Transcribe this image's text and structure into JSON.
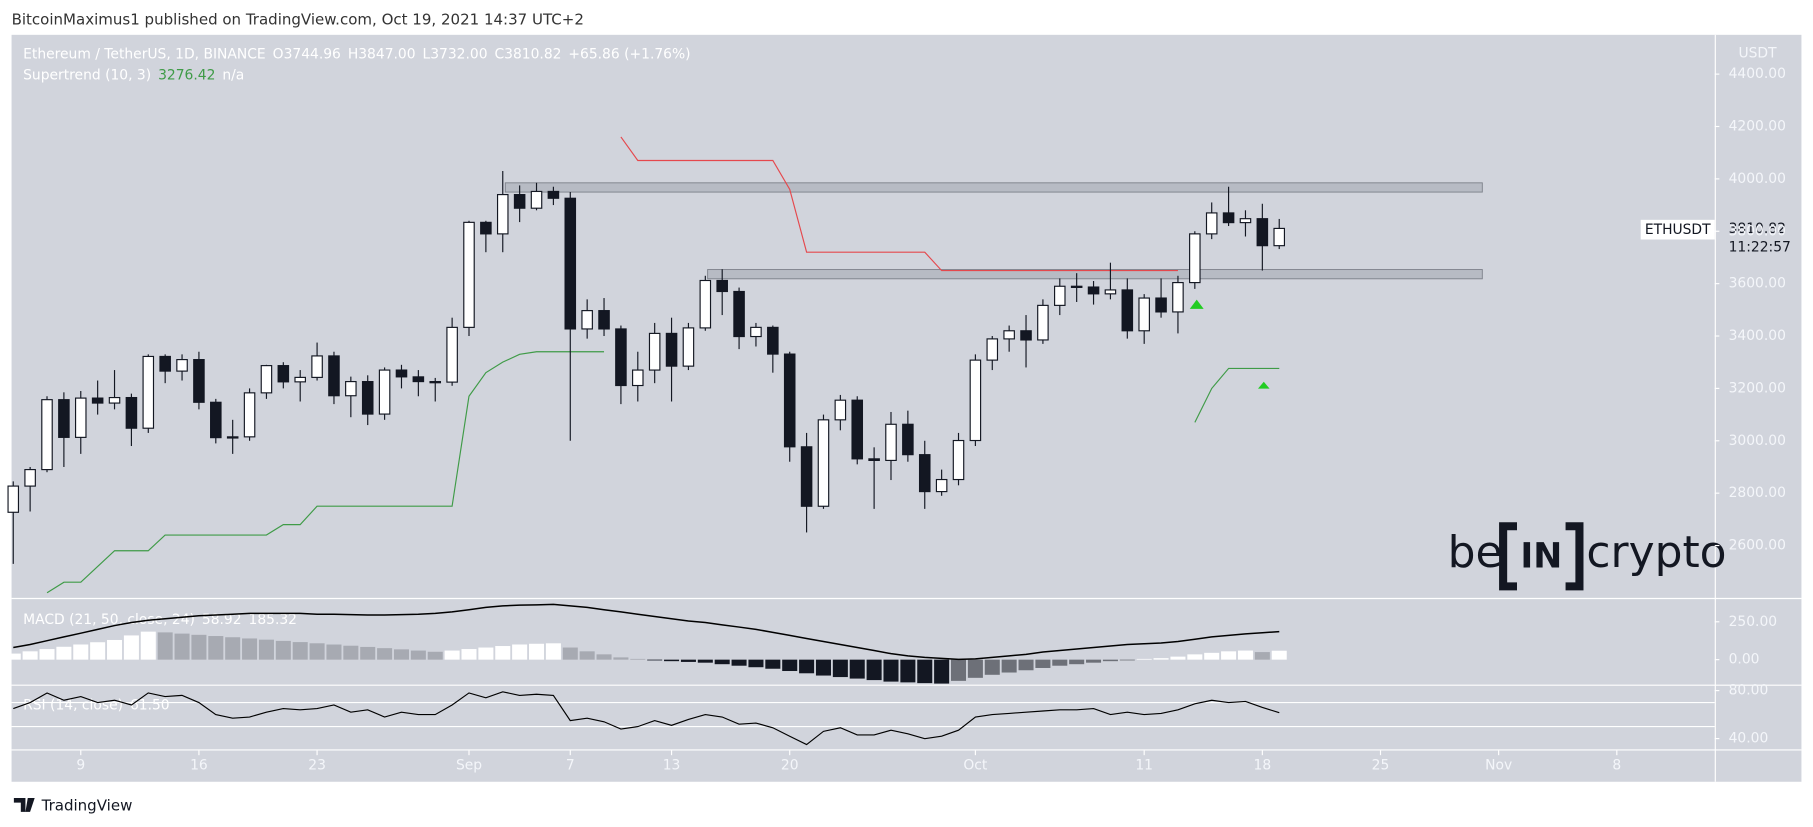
{
  "header": {
    "publisher": "BitcoinMaximus1 published on TradingView.com, Oct 19, 2021 14:37 UTC+2"
  },
  "chart_data": [
    {
      "type": "candlestick",
      "title": "Ethereum / TetherUS, 1D, BINANCE",
      "ohlc_legend": [
        {
          "key": "O",
          "label": "3744.96"
        },
        {
          "key": "H",
          "label": "3847.00"
        },
        {
          "key": "L",
          "label": "3732.00"
        },
        {
          "key": "C",
          "label": "3810.82"
        }
      ],
      "change_label": "+65.86 (+1.76%)",
      "currency": "USDT",
      "symbol": "ETHUSDT",
      "countdown": "11:22:57",
      "open": [
        2727,
        2827,
        2890,
        3157,
        3013,
        3163,
        3144,
        3165,
        3048,
        3322,
        3266,
        3310,
        3147,
        3012,
        3015,
        3183,
        3287,
        3225,
        3242,
        3324,
        3172,
        3226,
        3102,
        3270,
        3244,
        3226,
        3224,
        3433,
        3834,
        3790,
        3940,
        3888,
        3952,
        3926,
        3427,
        3497,
        3427,
        3211,
        3270,
        3410,
        3285,
        3431,
        3612,
        3570,
        3398,
        3433,
        3331,
        2977,
        2750,
        3080,
        3155,
        2931,
        2925,
        3063,
        2947,
        2806,
        2852,
        3001,
        3308,
        3389,
        3420,
        3385,
        3517,
        3590,
        3587,
        3561,
        3576,
        3420,
        3545,
        3492,
        3604,
        3790,
        3870,
        3833,
        3848,
        3744.96
      ],
      "high": [
        2845,
        2900,
        3170,
        3185,
        3190,
        3230,
        3270,
        3180,
        3330,
        3330,
        3330,
        3340,
        3160,
        3080,
        3200,
        3290,
        3300,
        3270,
        3375,
        3340,
        3245,
        3250,
        3280,
        3290,
        3270,
        3240,
        3470,
        3840,
        3840,
        4030,
        3975,
        3985,
        3970,
        3950,
        3540,
        3545,
        3440,
        3340,
        3450,
        3470,
        3450,
        3630,
        3655,
        3585,
        3450,
        3440,
        3340,
        3030,
        3100,
        3175,
        3170,
        2975,
        3110,
        3115,
        3000,
        2890,
        3030,
        3330,
        3400,
        3440,
        3480,
        3540,
        3620,
        3640,
        3610,
        3680,
        3620,
        3560,
        3620,
        3630,
        3800,
        3910,
        3970,
        3880,
        3905,
        3847
      ],
      "low": [
        2530,
        2730,
        2880,
        2900,
        2950,
        3100,
        3120,
        2980,
        3030,
        3220,
        3230,
        3120,
        2990,
        2950,
        3000,
        3160,
        3200,
        3150,
        3230,
        3140,
        3090,
        3060,
        3080,
        3200,
        3170,
        3150,
        3210,
        3400,
        3720,
        3720,
        3835,
        3880,
        3900,
        3000,
        3390,
        3400,
        3140,
        3150,
        3220,
        3150,
        3270,
        3420,
        3480,
        3350,
        3360,
        3260,
        2920,
        2650,
        2740,
        3040,
        2910,
        2740,
        2850,
        2920,
        2740,
        2790,
        2830,
        2980,
        3270,
        3340,
        3280,
        3370,
        3480,
        3530,
        3520,
        3540,
        3390,
        3370,
        3470,
        3410,
        3580,
        3770,
        3820,
        3780,
        3650,
        3732
      ],
      "close": [
        2827,
        2890,
        3157,
        3013,
        3163,
        3144,
        3165,
        3048,
        3322,
        3266,
        3310,
        3147,
        3012,
        3015,
        3183,
        3287,
        3225,
        3242,
        3324,
        3172,
        3226,
        3102,
        3270,
        3244,
        3226,
        3224,
        3433,
        3834,
        3790,
        3940,
        3888,
        3952,
        3926,
        3427,
        3497,
        3427,
        3211,
        3270,
        3410,
        3285,
        3431,
        3612,
        3570,
        3398,
        3433,
        3331,
        2977,
        2750,
        3080,
        3155,
        2931,
        2925,
        3063,
        2947,
        2806,
        2852,
        3001,
        3308,
        3389,
        3420,
        3385,
        3517,
        3590,
        3587,
        3561,
        3576,
        3420,
        3545,
        3492,
        3604,
        3790,
        3870,
        3833,
        3848,
        3744.96,
        3810.82
      ],
      "up_color": "#ffffff",
      "down_color": "#131722",
      "supertrend": {
        "name": "Supertrend (10, 3)",
        "up_color": "#3f9b47",
        "down_color": "#e5484d",
        "status": "n/a",
        "up_values": [
          null,
          null,
          2420,
          2460,
          2460,
          2520,
          2580,
          2580,
          2580,
          2640,
          2640,
          2640,
          2640,
          2640,
          2640,
          2640,
          2680,
          2680,
          2750,
          2750,
          2750,
          2750,
          2750,
          2750,
          2750,
          2750,
          2750,
          3170,
          3260,
          3300,
          3330,
          3340,
          3340,
          3340,
          3340,
          3340,
          null,
          null,
          null,
          null,
          null,
          null,
          null,
          null,
          null,
          null,
          null,
          null,
          null,
          null,
          null,
          null,
          null,
          null,
          null,
          null,
          null,
          null,
          null,
          null,
          null,
          null,
          null,
          null,
          null,
          null,
          null,
          null,
          null,
          null,
          3070,
          3200,
          3276.42,
          3276.42,
          3276.42,
          3276.42
        ],
        "down_values": [
          null,
          null,
          null,
          null,
          null,
          null,
          null,
          null,
          null,
          null,
          null,
          null,
          null,
          null,
          null,
          null,
          null,
          null,
          null,
          null,
          null,
          null,
          null,
          null,
          null,
          null,
          null,
          null,
          null,
          null,
          null,
          null,
          null,
          null,
          null,
          null,
          4160,
          4070,
          4070,
          4070,
          4070,
          4070,
          4070,
          4070,
          4070,
          4070,
          3960,
          3720,
          3720,
          3720,
          3720,
          3720,
          3720,
          3720,
          3720,
          3650,
          3650,
          3650,
          3650,
          3650,
          3650,
          3650,
          3650,
          3650,
          3650,
          3650,
          3650,
          3650,
          3650,
          3650,
          null,
          null,
          null,
          null,
          null,
          null
        ]
      },
      "xlim": [
        -0.1,
        100.8
      ],
      "xticks": [
        {
          "value": 4,
          "label": "9"
        },
        {
          "value": 11,
          "label": "16"
        },
        {
          "value": 18,
          "label": "23"
        },
        {
          "value": 27,
          "label": "Sep"
        },
        {
          "value": 33,
          "label": "7"
        },
        {
          "value": 39,
          "label": "13"
        },
        {
          "value": 46,
          "label": "20"
        },
        {
          "value": 57,
          "label": "Oct"
        },
        {
          "value": 67,
          "label": "11"
        },
        {
          "value": 74,
          "label": "18"
        },
        {
          "value": 81,
          "label": "25"
        },
        {
          "value": 88,
          "label": "Nov"
        },
        {
          "value": 95,
          "label": "8"
        }
      ],
      "ylim": [
        2400,
        4550
      ],
      "yticks": [
        {
          "value": 4400,
          "label": "4400.00"
        },
        {
          "value": 4200,
          "label": "4200.00"
        },
        {
          "value": 4000,
          "label": "4000.00"
        },
        {
          "value": 3800,
          "label": "3800.00"
        },
        {
          "value": 3600,
          "label": "3600.00"
        },
        {
          "value": 3400,
          "label": "3400.00"
        },
        {
          "value": 3200,
          "label": "3200.00"
        },
        {
          "value": 3000,
          "label": "3000.00"
        },
        {
          "value": 2800,
          "label": "2800.00"
        },
        {
          "value": 2600,
          "label": "2600.00"
        }
      ]
    },
    {
      "type": "macd",
      "title": "MACD (21, 50, close, 24)",
      "histogram": [
        40,
        55,
        70,
        85,
        100,
        115,
        130,
        160,
        185,
        180,
        172,
        164,
        156,
        148,
        140,
        132,
        124,
        116,
        108,
        100,
        92,
        84,
        76,
        68,
        60,
        52,
        60,
        70,
        80,
        90,
        100,
        105,
        108,
        80,
        55,
        35,
        15,
        5,
        -5,
        -10,
        -15,
        -20,
        -30,
        -40,
        -50,
        -60,
        -75,
        -90,
        -105,
        -115,
        -125,
        -135,
        -145,
        -150,
        -155,
        -158,
        -140,
        -120,
        -100,
        -85,
        -70,
        -55,
        -40,
        -30,
        -20,
        -10,
        -5,
        5,
        10,
        20,
        35,
        45,
        55,
        60,
        50,
        58.92
      ],
      "macd": [
        80,
        100,
        125,
        150,
        175,
        200,
        225,
        245,
        260,
        270,
        280,
        290,
        295,
        300,
        305,
        305,
        305,
        305,
        300,
        300,
        298,
        295,
        295,
        298,
        300,
        305,
        315,
        330,
        345,
        355,
        360,
        362,
        365,
        355,
        345,
        330,
        315,
        300,
        285,
        270,
        255,
        245,
        230,
        215,
        200,
        180,
        160,
        140,
        120,
        100,
        80,
        60,
        40,
        25,
        15,
        8,
        2,
        5,
        15,
        25,
        35,
        50,
        60,
        70,
        80,
        90,
        100,
        105,
        110,
        120,
        135,
        150,
        160,
        170,
        178,
        185.32
      ],
      "macd_color": "#000000",
      "hist_colors": {
        "rise_pos": "#ffffff",
        "fall_pos": "#a7aab2",
        "fall_neg": "#131722",
        "rise_neg": "#6d7078"
      },
      "ylim": [
        -165,
        400
      ],
      "yticks": [
        {
          "value": 250,
          "label": "250.00"
        },
        {
          "value": 0,
          "label": "0.00"
        }
      ]
    },
    {
      "type": "line",
      "title": "RSI (14, close)",
      "values": [
        65,
        70,
        78,
        72,
        75,
        70,
        72,
        68,
        78,
        75,
        76,
        70,
        60,
        57,
        58,
        62,
        65,
        64,
        65,
        68,
        62,
        64,
        58,
        62,
        60,
        60,
        68,
        78,
        74,
        79,
        76,
        77,
        76,
        55,
        57,
        54,
        48,
        50,
        55,
        51,
        56,
        60,
        58,
        52,
        53,
        49,
        42,
        35,
        46,
        49,
        43,
        43,
        47,
        44,
        40,
        42,
        47,
        58,
        60,
        61,
        62,
        63,
        64,
        64,
        65,
        60,
        62,
        60,
        61,
        64,
        69,
        72,
        70,
        71,
        66,
        61.5
      ],
      "value_labels": [
        null,
        null,
        null,
        null,
        null,
        null,
        null,
        null,
        null,
        null,
        null,
        null,
        null,
        null,
        null,
        null,
        null,
        null,
        null,
        null,
        null,
        null,
        null,
        null,
        null,
        null,
        null,
        null,
        null,
        null,
        null,
        null,
        null,
        null,
        null,
        null,
        null,
        null,
        null,
        null,
        null,
        null,
        null,
        null,
        null,
        null,
        null,
        null,
        null,
        null,
        null,
        null,
        null,
        null,
        null,
        null,
        null,
        null,
        null,
        null,
        null,
        null,
        null,
        null,
        null,
        null,
        null,
        null,
        null,
        null,
        null,
        null,
        null,
        null,
        null,
        "61.50"
      ],
      "color": "#000000",
      "levels": [
        70,
        50
      ],
      "ylim": [
        31,
        84
      ],
      "yticks": [
        {
          "value": 80,
          "label": "80.00"
        },
        {
          "value": 40,
          "label": "40.00"
        }
      ]
    }
  ],
  "footer": {
    "brand": "TradingView"
  },
  "watermark": {
    "left": "be",
    "middle": "IN",
    "right": "crypto"
  }
}
